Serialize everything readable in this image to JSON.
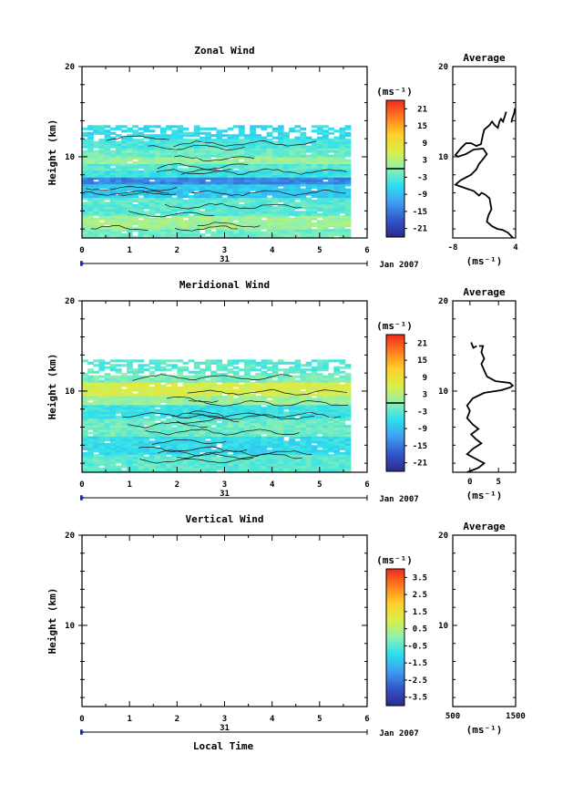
{
  "figure": {
    "xlabel": "Local Time"
  },
  "chart_data": [
    {
      "type": "heatmap",
      "title": "Zonal Wind",
      "ylabel": "Height (km)",
      "xlim": [
        0,
        6
      ],
      "ylim": [
        1,
        20
      ],
      "xticks": [
        "0",
        "1",
        "2",
        "3",
        "4",
        "5",
        "6"
      ],
      "yticks": [
        {
          "v": 10,
          "label": "10"
        },
        {
          "v": 20,
          "label": "20"
        }
      ],
      "date": {
        "day": "31",
        "month": "Jan 2007"
      },
      "colorbar": {
        "unit": "(ms⁻¹)",
        "min": -24,
        "max": 24,
        "zero_line": true,
        "ticks": [
          "21",
          "15",
          "9",
          "3",
          "-3",
          "-9",
          "-15",
          "-21"
        ]
      },
      "data_extent": {
        "x": [
          0,
          5.65
        ],
        "y": [
          1,
          13.5
        ]
      },
      "profile": "zonal",
      "average": {
        "title": "Average",
        "xlim": [
          -8,
          4
        ],
        "ylim": [
          1,
          20
        ],
        "unit": "(ms⁻¹)",
        "xticks": [
          {
            "v": -8,
            "label": "-8"
          },
          {
            "v": 4,
            "label": "4"
          }
        ],
        "yticks": [
          {
            "v": 10,
            "label": "10"
          },
          {
            "v": 20,
            "label": "20"
          }
        ],
        "profile": [
          [
            3.5,
            1
          ],
          [
            3,
            1.3
          ],
          [
            2.5,
            1.6
          ],
          [
            1.5,
            1.9
          ],
          [
            0.5,
            2.0
          ],
          [
            -0.5,
            2.3
          ],
          [
            -1.5,
            2.8
          ],
          [
            -1.2,
            3.5
          ],
          [
            -0.6,
            4.2
          ],
          [
            -0.8,
            4.8
          ],
          [
            -1.0,
            5.4
          ],
          [
            -1.8,
            5.8
          ],
          [
            -2.5,
            6.0
          ],
          [
            -3.0,
            5.7
          ],
          [
            -4.0,
            6.2
          ],
          [
            -5.5,
            6.5
          ],
          [
            -7.5,
            6.9
          ],
          [
            -6.5,
            7.4
          ],
          [
            -4.5,
            8.0
          ],
          [
            -3.5,
            8.6
          ],
          [
            -3.0,
            9.2
          ],
          [
            -2.0,
            9.9
          ],
          [
            -1.5,
            10.3
          ],
          [
            -2.2,
            10.9
          ],
          [
            -4.0,
            10.8
          ],
          [
            -5.5,
            10.3
          ],
          [
            -7.0,
            10.0
          ],
          [
            -7.5,
            10.2
          ],
          [
            -6.5,
            10.9
          ],
          [
            -5.5,
            11.5
          ],
          [
            -4.5,
            11.5
          ],
          [
            -3.5,
            11.2
          ],
          [
            -2.6,
            11.4
          ],
          [
            -2.3,
            12.3
          ],
          [
            -2.0,
            13.0
          ],
          [
            -1.0,
            13.5
          ],
          [
            -0.5,
            13.9
          ],
          [
            0,
            13.5
          ],
          [
            0.6,
            13.2
          ],
          [
            0.9,
            13.9
          ],
          [
            1.2,
            14.2
          ],
          [
            1.6,
            13.9
          ],
          [
            2.0,
            14.6
          ],
          [
            2.2,
            15.0
          ]
        ],
        "profile2": [
          [
            3.2,
            13.8
          ],
          [
            3.4,
            14.3
          ],
          [
            3.7,
            14.8
          ],
          [
            3.9,
            15.4
          ]
        ]
      }
    },
    {
      "type": "heatmap",
      "title": "Meridional Wind",
      "ylabel": "Height (km)",
      "xlim": [
        0,
        6
      ],
      "ylim": [
        1,
        20
      ],
      "xticks": [
        "0",
        "1",
        "2",
        "3",
        "4",
        "5",
        "6"
      ],
      "yticks": [
        {
          "v": 10,
          "label": "10"
        },
        {
          "v": 20,
          "label": "20"
        }
      ],
      "date": {
        "day": "31",
        "month": "Jan 2007"
      },
      "colorbar": {
        "unit": "(ms⁻¹)",
        "min": -24,
        "max": 24,
        "zero_line": true,
        "ticks": [
          "21",
          "15",
          "9",
          "3",
          "-3",
          "-9",
          "-15",
          "-21"
        ]
      },
      "data_extent": {
        "x": [
          0,
          5.65
        ],
        "y": [
          1,
          13.3
        ]
      },
      "profile": "meridional",
      "average": {
        "title": "Average",
        "xlim": [
          -3,
          8
        ],
        "ylim": [
          1,
          20
        ],
        "unit": "(ms⁻¹)",
        "xticks": [
          {
            "v": 0,
            "label": "0"
          },
          {
            "v": 5,
            "label": "5"
          }
        ],
        "yticks": [
          {
            "v": 10,
            "label": "10"
          },
          {
            "v": 20,
            "label": "20"
          }
        ],
        "profile": [
          [
            -0.5,
            1
          ],
          [
            1.5,
            1.5
          ],
          [
            2.5,
            2.0
          ],
          [
            1.0,
            2.5
          ],
          [
            -0.5,
            3.0
          ],
          [
            0.5,
            3.6
          ],
          [
            2.0,
            4.2
          ],
          [
            1.0,
            4.7
          ],
          [
            0.2,
            5.2
          ],
          [
            1.5,
            5.8
          ],
          [
            0.5,
            6.3
          ],
          [
            -0.5,
            7.0
          ],
          [
            0,
            7.8
          ],
          [
            -0.5,
            8.4
          ],
          [
            0.5,
            9.2
          ],
          [
            2.5,
            9.8
          ],
          [
            5.5,
            10.1
          ],
          [
            7.0,
            10.4
          ],
          [
            7.5,
            10.6
          ],
          [
            7.0,
            10.9
          ],
          [
            4.5,
            11.1
          ],
          [
            3.0,
            11.6
          ],
          [
            2.5,
            12.3
          ],
          [
            2.0,
            13.0
          ],
          [
            2.5,
            13.6
          ],
          [
            2.0,
            14.3
          ],
          [
            2.3,
            15.0
          ],
          [
            1.6,
            15.0
          ]
        ],
        "profile2": [
          [
            0.2,
            15.4
          ],
          [
            0.6,
            14.8
          ],
          [
            1.2,
            15.0
          ]
        ]
      }
    },
    {
      "type": "heatmap",
      "title": "Vertical Wind",
      "ylabel": "Height (km)",
      "xlim": [
        0,
        6
      ],
      "ylim": [
        1,
        20
      ],
      "xticks": [
        "0",
        "1",
        "2",
        "3",
        "4",
        "5",
        "6"
      ],
      "yticks": [
        {
          "v": 10,
          "label": "10"
        },
        {
          "v": 20,
          "label": "20"
        }
      ],
      "date": {
        "day": "31",
        "month": "Jan 2007"
      },
      "colorbar": {
        "unit": "(ms⁻¹)",
        "min": -4,
        "max": 4,
        "zero_line": false,
        "ticks": [
          "3.5",
          "2.5",
          "1.5",
          "0.5",
          "-0.5",
          "-1.5",
          "-2.5",
          "-3.5"
        ]
      },
      "data_extent": null,
      "profile": null,
      "average": {
        "title": "Average",
        "xlim": [
          500,
          1500
        ],
        "ylim": [
          1,
          20
        ],
        "unit": "(ms⁻¹)",
        "xticks": [
          {
            "v": 500,
            "label": "500"
          },
          {
            "v": 1500,
            "label": "1500"
          }
        ],
        "yticks": [
          {
            "v": 10,
            "label": "10"
          },
          {
            "v": 20,
            "label": "20"
          }
        ],
        "profile": [],
        "profile2": []
      }
    }
  ]
}
